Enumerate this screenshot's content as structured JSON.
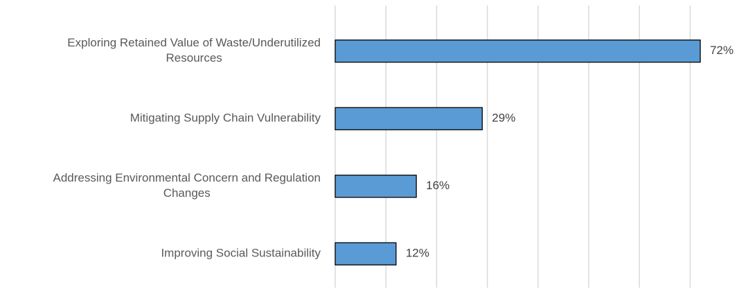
{
  "chart_data": {
    "type": "barh",
    "categories": [
      "Exploring Retained Value of Waste/Underutilized\nResources",
      "Mitigating Supply Chain Vulnerability",
      "Addressing Environmental Concern and Regulation\nChanges",
      "Improving Social Sustainability"
    ],
    "values": [
      72,
      29,
      16,
      12
    ],
    "value_labels": [
      "72%",
      "29%",
      "16%",
      "12%"
    ],
    "color": "#5b9bd5",
    "xlim": [
      0,
      78
    ],
    "xticks": [
      0,
      10,
      20,
      30,
      40,
      50,
      60,
      70
    ],
    "grid": true
  }
}
